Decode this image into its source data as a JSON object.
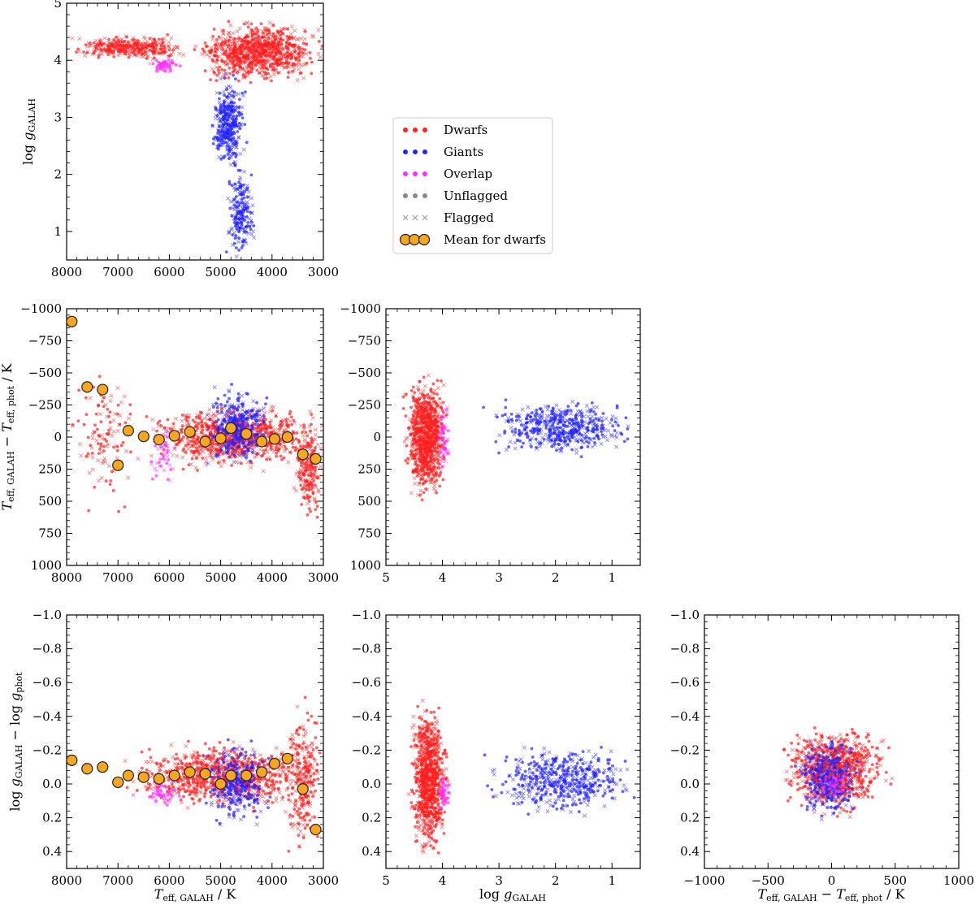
{
  "colors": {
    "dwarfs": "#ff2020",
    "giants": "#2222ff",
    "overlap": "#ff30ff",
    "unflagged": "#888888",
    "flagged": "#999999",
    "mean_fill": "#f5a623",
    "mean_edge": "#222222"
  },
  "legend": {
    "position": "center",
    "items": [
      {
        "label": "Dwarfs",
        "marker": "dot",
        "color": "#ff2020"
      },
      {
        "label": "Giants",
        "marker": "dot",
        "color": "#2222ff"
      },
      {
        "label": "Overlap",
        "marker": "dot",
        "color": "#ff30ff"
      },
      {
        "label": "Unflagged",
        "marker": "dot",
        "color": "#888888"
      },
      {
        "label": "Flagged",
        "marker": "cross",
        "color": "#999999"
      },
      {
        "label": "Mean for dwarfs",
        "marker": "circle",
        "color": "#f5a623"
      }
    ]
  },
  "chart_data": [
    {
      "id": "p11",
      "type": "scatter",
      "xlabel": "",
      "ylabel": "log gGALAH",
      "xlim": [
        8000,
        3000
      ],
      "ylim": [
        5,
        0.5
      ],
      "xticks": [
        8000,
        7000,
        6000,
        5000,
        4000,
        3000
      ],
      "xtick_labels": [
        "8000",
        "7000",
        "6000",
        "5000",
        "4000",
        "3000"
      ],
      "yticks": [
        1,
        2,
        3,
        4,
        5
      ],
      "ytick_labels": [
        "1",
        "2",
        "3",
        "4",
        "5"
      ],
      "series": [
        {
          "name": "Dwarfs",
          "clusters": [
            {
              "x": [
                3000,
                5500
              ],
              "y": [
                3.6,
                4.7
              ],
              "n": 900
            },
            {
              "x": [
                5500,
                8000
              ],
              "y": [
                4.0,
                4.45
              ],
              "n": 350
            }
          ]
        },
        {
          "name": "Giants",
          "clusters": [
            {
              "x": [
                4500,
                5200
              ],
              "y": [
                2.0,
                3.8
              ],
              "n": 350
            },
            {
              "x": [
                4300,
                4900
              ],
              "y": [
                0.5,
                2.2
              ],
              "n": 200
            }
          ]
        },
        {
          "name": "Overlap",
          "clusters": [
            {
              "x": [
                5800,
                6400
              ],
              "y": [
                3.75,
                4.05
              ],
              "n": 60
            }
          ]
        }
      ]
    },
    {
      "id": "p21",
      "type": "scatter",
      "xlabel": "",
      "ylabel": "Teff, GALAH − Teff, phot / K",
      "xlim": [
        8000,
        3000
      ],
      "ylim": [
        -1000,
        1000
      ],
      "xticks": [
        8000,
        7000,
        6000,
        5000,
        4000,
        3000
      ],
      "xtick_labels": [
        "8000",
        "7000",
        "6000",
        "5000",
        "4000",
        "3000"
      ],
      "yticks": [
        -1000,
        -750,
        -500,
        -250,
        0,
        250,
        500,
        750,
        1000
      ],
      "ytick_labels": [
        "−1000",
        "−750",
        "−500",
        "−250",
        "0",
        "250",
        "500",
        "750",
        "1000"
      ],
      "series": [
        {
          "name": "Dwarfs",
          "clusters": [
            {
              "x": [
                3000,
                6500
              ],
              "y": [
                -250,
                250
              ],
              "n": 900
            },
            {
              "x": [
                3000,
                3600
              ],
              "y": [
                -200,
                700
              ],
              "n": 200
            },
            {
              "x": [
                6500,
                8000
              ],
              "y": [
                -600,
                600
              ],
              "n": 120
            }
          ]
        },
        {
          "name": "Giants",
          "clusters": [
            {
              "x": [
                4000,
                5300
              ],
              "y": [
                -400,
                250
              ],
              "n": 350
            }
          ]
        },
        {
          "name": "Overlap",
          "clusters": [
            {
              "x": [
                5800,
                6500
              ],
              "y": [
                -150,
                400
              ],
              "n": 50
            }
          ]
        },
        {
          "name": "Mean for dwarfs",
          "x": [
            7900,
            7600,
            7300,
            7000,
            6800,
            6500,
            6200,
            5900,
            5600,
            5300,
            5000,
            4800,
            4500,
            4200,
            3950,
            3700,
            3400,
            3150
          ],
          "y": [
            -900,
            -390,
            -370,
            220,
            -50,
            -5,
            20,
            -10,
            -40,
            35,
            10,
            -70,
            -25,
            35,
            15,
            0,
            135,
            170
          ]
        }
      ]
    },
    {
      "id": "p22",
      "type": "scatter",
      "xlabel": "",
      "ylabel": "",
      "xlim": [
        5,
        0.5
      ],
      "ylim": [
        -1000,
        1000
      ],
      "xticks": [
        5,
        4,
        3,
        2,
        1
      ],
      "xtick_labels": [
        "5",
        "4",
        "3",
        "2",
        "1"
      ],
      "yticks": [
        -1000,
        -750,
        -500,
        -250,
        0,
        250,
        500,
        750,
        1000
      ],
      "ytick_labels": [
        "−1000",
        "−750",
        "−500",
        "−250",
        "0",
        "250",
        "500",
        "750",
        "1000"
      ],
      "series": [
        {
          "name": "Dwarfs",
          "clusters": [
            {
              "x": [
                3.9,
                4.7
              ],
              "y": [
                -500,
                500
              ],
              "n": 900
            }
          ]
        },
        {
          "name": "Giants",
          "clusters": [
            {
              "x": [
                0.5,
                3.3
              ],
              "y": [
                -300,
                150
              ],
              "n": 500
            }
          ]
        },
        {
          "name": "Overlap",
          "clusters": [
            {
              "x": [
                3.85,
                4.1
              ],
              "y": [
                -300,
                300
              ],
              "n": 50
            }
          ]
        }
      ]
    },
    {
      "id": "p31",
      "type": "scatter",
      "xlabel": "Teff, GALAH / K",
      "ylabel": "log gGALAH − log gphot",
      "xlim": [
        8000,
        3000
      ],
      "ylim": [
        -1,
        0.5
      ],
      "xticks": [
        8000,
        7000,
        6000,
        5000,
        4000,
        3000
      ],
      "xtick_labels": [
        "8000",
        "7000",
        "6000",
        "5000",
        "4000",
        "3000"
      ],
      "yticks": [
        -1,
        -0.8,
        -0.6,
        -0.4,
        -0.2,
        0,
        0.2,
        0.4
      ],
      "ytick_labels": [
        "−1.0",
        "−0.8",
        "−0.6",
        "−0.4",
        "−0.2",
        "0.0",
        "0.2",
        "0.4"
      ],
      "series": [
        {
          "name": "Dwarfs",
          "clusters": [
            {
              "x": [
                3000,
                7000
              ],
              "y": [
                -0.25,
                0.15
              ],
              "n": 900
            },
            {
              "x": [
                3000,
                3800
              ],
              "y": [
                -0.5,
                0.45
              ],
              "n": 250
            }
          ]
        },
        {
          "name": "Giants",
          "clusters": [
            {
              "x": [
                4000,
                5400
              ],
              "y": [
                -0.25,
                0.25
              ],
              "n": 300
            }
          ]
        },
        {
          "name": "Overlap",
          "clusters": [
            {
              "x": [
                5800,
                6500
              ],
              "y": [
                -0.05,
                0.15
              ],
              "n": 50
            }
          ]
        },
        {
          "name": "Mean for dwarfs",
          "x": [
            7900,
            7600,
            7300,
            7000,
            6800,
            6500,
            6200,
            5900,
            5600,
            5300,
            5000,
            4800,
            4500,
            4200,
            3950,
            3700,
            3400,
            3150
          ],
          "y": [
            -0.14,
            -0.09,
            -0.1,
            -0.01,
            -0.05,
            -0.04,
            -0.03,
            -0.05,
            -0.07,
            -0.06,
            0.0,
            -0.05,
            -0.05,
            -0.07,
            -0.12,
            -0.15,
            0.03,
            0.27
          ]
        }
      ]
    },
    {
      "id": "p32",
      "type": "scatter",
      "xlabel": "log gGALAH",
      "ylabel": "",
      "xlim": [
        5,
        0.5
      ],
      "ylim": [
        -1,
        0.5
      ],
      "xticks": [
        5,
        4,
        3,
        2,
        1
      ],
      "xtick_labels": [
        "5",
        "4",
        "3",
        "2",
        "1"
      ],
      "yticks": [
        -1,
        -0.8,
        -0.6,
        -0.4,
        -0.2,
        0,
        0.2,
        0.4
      ],
      "ytick_labels": [
        "−1.0",
        "−0.8",
        "−0.6",
        "−0.4",
        "−0.2",
        "0.0",
        "0.2",
        "0.4"
      ],
      "series": [
        {
          "name": "Dwarfs",
          "clusters": [
            {
              "x": [
                3.9,
                4.6
              ],
              "y": [
                -0.5,
                0.45
              ],
              "n": 900
            }
          ]
        },
        {
          "name": "Giants",
          "clusters": [
            {
              "x": [
                0.5,
                3.3
              ],
              "y": [
                -0.25,
                0.2
              ],
              "n": 500
            }
          ]
        },
        {
          "name": "Overlap",
          "clusters": [
            {
              "x": [
                3.85,
                4.1
              ],
              "y": [
                -0.05,
                0.15
              ],
              "n": 50
            }
          ]
        }
      ]
    },
    {
      "id": "p33",
      "type": "scatter",
      "xlabel": "Teff, GALAH − Teff, phot / K",
      "ylabel": "",
      "xlim": [
        -1000,
        1000
      ],
      "ylim": [
        -1,
        0.5
      ],
      "xticks": [
        -1000,
        -500,
        0,
        500,
        1000
      ],
      "xtick_labels": [
        "−1000",
        "−500",
        "0",
        "500",
        "1000"
      ],
      "yticks": [
        -1,
        -0.8,
        -0.6,
        -0.4,
        -0.2,
        0,
        0.2,
        0.4
      ],
      "ytick_labels": [
        "−1.0",
        "−0.8",
        "−0.6",
        "−0.4",
        "−0.2",
        "0.0",
        "0.2",
        "0.4"
      ],
      "series": [
        {
          "name": "Dwarfs",
          "clusters": [
            {
              "x": [
                -400,
                450
              ],
              "y": [
                -0.35,
                0.2
              ],
              "n": 900
            }
          ]
        },
        {
          "name": "Giants",
          "clusters": [
            {
              "x": [
                -300,
                250
              ],
              "y": [
                -0.3,
                0.25
              ],
              "n": 350
            }
          ]
        },
        {
          "name": "Overlap",
          "clusters": [
            {
              "x": [
                -100,
                150
              ],
              "y": [
                -0.1,
                0.1
              ],
              "n": 30
            }
          ]
        }
      ]
    }
  ]
}
